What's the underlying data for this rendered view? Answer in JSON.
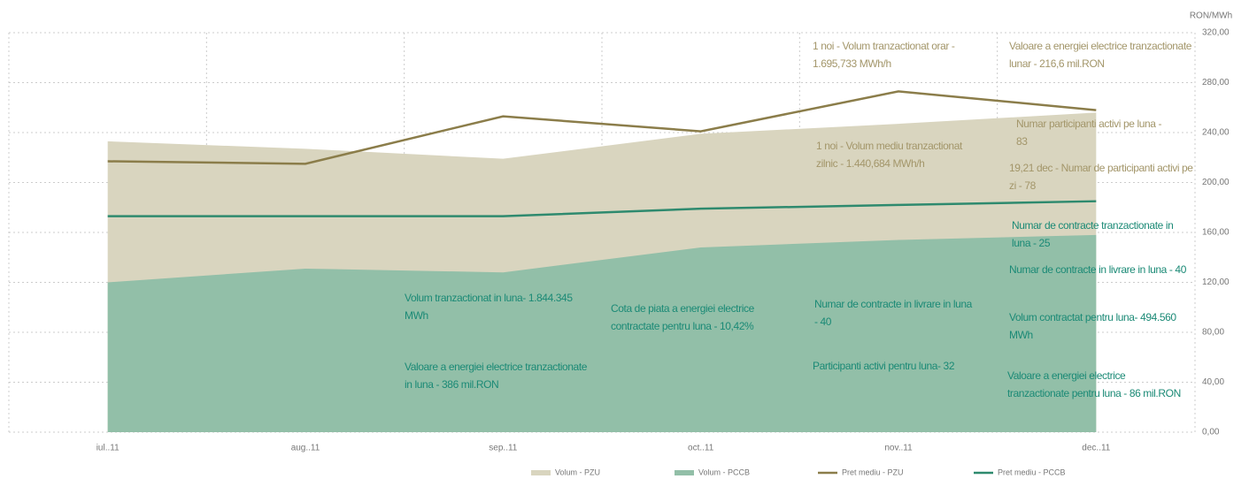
{
  "chart_data": {
    "type": "area_line",
    "y_axis_label": "RON/MWh",
    "categories": [
      "iul..11",
      "aug..11",
      "sep..11",
      "oct..11",
      "nov..11",
      "dec..11"
    ],
    "ylim": [
      0,
      320
    ],
    "yticks": [
      {
        "value": 0,
        "label": "0,00"
      },
      {
        "value": 40,
        "label": "40,00"
      },
      {
        "value": 80,
        "label": "80,00"
      },
      {
        "value": 120,
        "label": "120,00"
      },
      {
        "value": 160,
        "label": "160,00"
      },
      {
        "value": 200,
        "label": "200,00"
      },
      {
        "value": 240,
        "label": "240,00"
      },
      {
        "value": 280,
        "label": "280,00"
      },
      {
        "value": 320,
        "label": "320,00"
      }
    ],
    "grid": true,
    "series": [
      {
        "name": "Volum - PZU",
        "kind": "area",
        "color": "#d9d5bf",
        "values": [
          233,
          227,
          219,
          239,
          247,
          256
        ]
      },
      {
        "name": "Volum - PCCB",
        "kind": "area",
        "color": "#92bfa8",
        "values": [
          120,
          131,
          128,
          148,
          154,
          158
        ]
      },
      {
        "name": "Pret mediu - PZU",
        "kind": "line",
        "color": "#8b7d4a",
        "values": [
          217,
          215,
          253,
          241,
          273,
          258
        ]
      },
      {
        "name": "Pret mediu - PCCB",
        "kind": "line",
        "color": "#2e8a6e",
        "values": [
          173,
          173,
          173,
          179,
          182,
          185
        ]
      }
    ],
    "annotations": [
      {
        "text": "1 noi - Volum tranzactionat orar - 1.695,733 MWh/h",
        "color": "#a3966a"
      },
      {
        "text": "Valoare a energiei electrice tranzactionate lunar - 216,6 mil.RON",
        "color": "#a3966a"
      },
      {
        "text": "Numar participanti activi pe luna - 83",
        "color": "#a3966a"
      },
      {
        "text": "1 noi - Volum mediu tranzactionat zilnic - 1.440,684 MWh/h",
        "color": "#a3966a"
      },
      {
        "text": "19,21 dec - Numar de participanti activi pe zi - 78",
        "color": "#a3966a"
      },
      {
        "text": "Numar de contracte tranzactionate in luna - 25",
        "color": "#1b8a76"
      },
      {
        "text": "Numar de contracte in livrare in luna - 40",
        "color": "#1b8a76"
      },
      {
        "text": "Volum tranzactionat in luna- 1.844.345 MWh",
        "color": "#1b8a76"
      },
      {
        "text": "Cota de piata a energiei electrice contractate pentru luna - 10,42%",
        "color": "#1b8a76"
      },
      {
        "text": "Numar de contracte in livrare in luna - 40",
        "color": "#1b8a76"
      },
      {
        "text": "Volum contractat pentru luna- 494.560 MWh",
        "color": "#1b8a76"
      },
      {
        "text": "Valoare a energiei electrice tranzactionate in luna - 386 mil.RON",
        "color": "#1b8a76"
      },
      {
        "text": "Participanti activi pentru luna- 32",
        "color": "#1b8a76"
      },
      {
        "text": "Valoare a energiei electrice tranzactionate pentru luna - 86 mil.RON",
        "color": "#1b8a76"
      }
    ]
  }
}
